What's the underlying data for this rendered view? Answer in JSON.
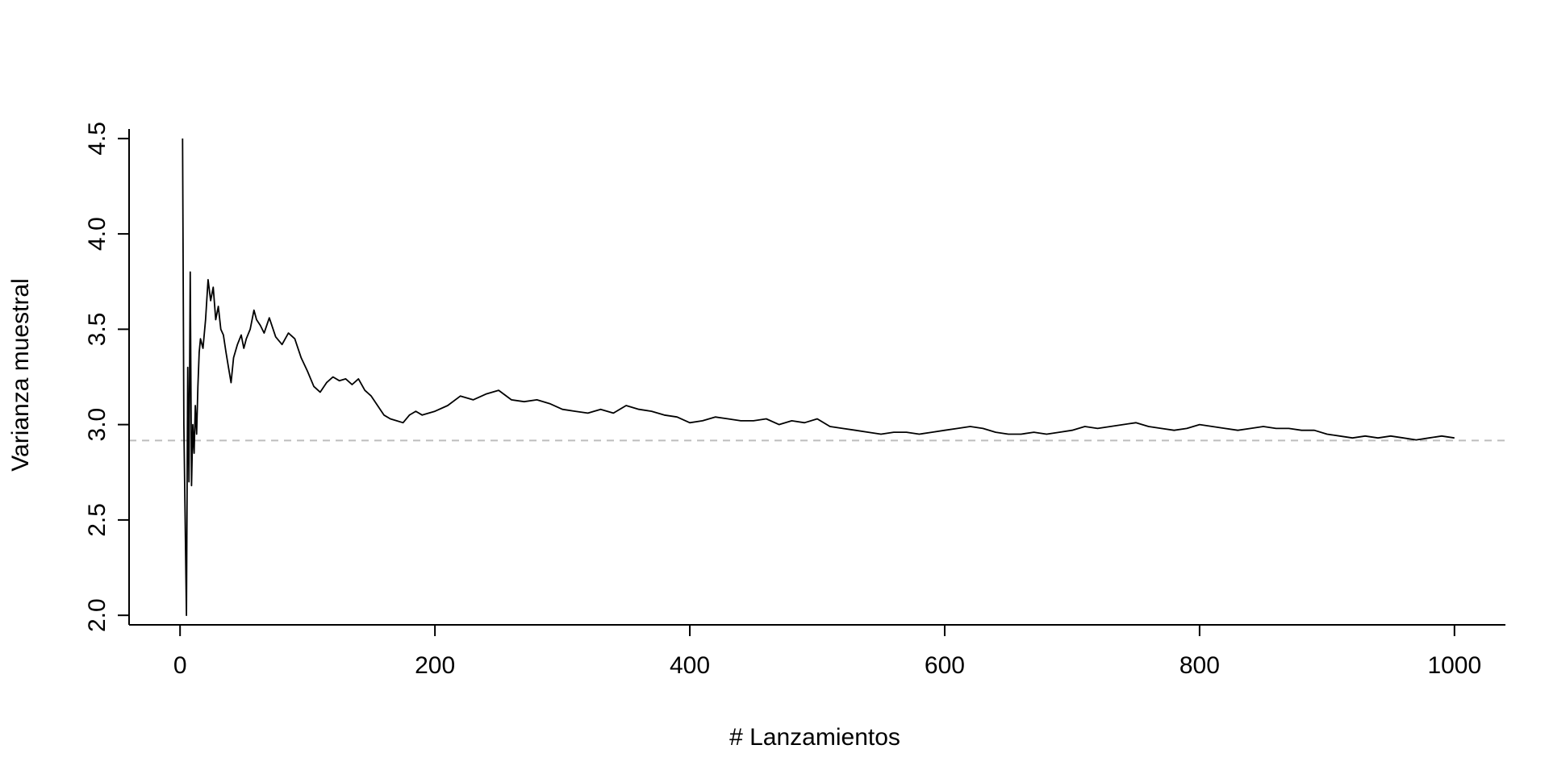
{
  "chart_data": {
    "type": "line",
    "title": "",
    "xlabel": "# Lanzamientos",
    "ylabel": "Varianza muestral",
    "xlim": [
      -40,
      1040
    ],
    "ylim": [
      1.95,
      4.55
    ],
    "xticks": [
      0,
      200,
      400,
      600,
      800,
      1000
    ],
    "xtick_labels": [
      "0",
      "200",
      "400",
      "600",
      "800",
      "1000"
    ],
    "yticks": [
      2.0,
      2.5,
      3.0,
      3.5,
      4.0,
      4.5
    ],
    "ytick_labels": [
      "2.0",
      "2.5",
      "3.0",
      "3.5",
      "4.0",
      "4.5"
    ],
    "grid": false,
    "reference_line": {
      "y": 2.9167,
      "style": "dashed",
      "color": "#bdbdbd"
    },
    "series": [
      {
        "color": "#000000",
        "x": [
          2,
          3,
          4,
          5,
          6,
          7,
          8,
          9,
          10,
          11,
          12,
          13,
          14,
          15,
          16,
          18,
          20,
          22,
          24,
          26,
          28,
          30,
          32,
          34,
          36,
          38,
          40,
          42,
          45,
          48,
          50,
          52,
          55,
          58,
          60,
          63,
          66,
          70,
          75,
          80,
          85,
          90,
          95,
          100,
          105,
          110,
          115,
          120,
          125,
          130,
          135,
          140,
          145,
          150,
          155,
          160,
          165,
          170,
          175,
          180,
          185,
          190,
          200,
          210,
          220,
          230,
          240,
          250,
          260,
          270,
          280,
          290,
          300,
          310,
          320,
          330,
          340,
          350,
          360,
          370,
          380,
          390,
          400,
          410,
          420,
          430,
          440,
          450,
          460,
          470,
          480,
          490,
          500,
          510,
          520,
          530,
          540,
          550,
          560,
          570,
          580,
          590,
          600,
          610,
          620,
          630,
          640,
          650,
          660,
          670,
          680,
          690,
          700,
          710,
          720,
          730,
          740,
          750,
          760,
          770,
          780,
          790,
          800,
          810,
          820,
          830,
          840,
          850,
          860,
          870,
          880,
          890,
          900,
          910,
          920,
          930,
          940,
          950,
          960,
          970,
          980,
          990,
          1000
        ],
        "values": [
          4.5,
          3.0,
          2.5,
          2.0,
          3.3,
          2.7,
          3.8,
          2.68,
          3.0,
          2.85,
          3.1,
          2.95,
          3.2,
          3.38,
          3.45,
          3.4,
          3.55,
          3.76,
          3.65,
          3.72,
          3.55,
          3.62,
          3.5,
          3.47,
          3.38,
          3.3,
          3.22,
          3.35,
          3.42,
          3.47,
          3.4,
          3.45,
          3.5,
          3.6,
          3.55,
          3.52,
          3.48,
          3.56,
          3.46,
          3.42,
          3.48,
          3.45,
          3.35,
          3.28,
          3.2,
          3.17,
          3.22,
          3.25,
          3.23,
          3.24,
          3.21,
          3.24,
          3.18,
          3.15,
          3.1,
          3.05,
          3.03,
          3.02,
          3.01,
          3.05,
          3.07,
          3.05,
          3.07,
          3.1,
          3.15,
          3.13,
          3.16,
          3.18,
          3.13,
          3.12,
          3.13,
          3.11,
          3.08,
          3.07,
          3.06,
          3.08,
          3.06,
          3.1,
          3.08,
          3.07,
          3.05,
          3.04,
          3.01,
          3.02,
          3.04,
          3.03,
          3.02,
          3.02,
          3.03,
          3.0,
          3.02,
          3.01,
          3.03,
          2.99,
          2.98,
          2.97,
          2.96,
          2.95,
          2.96,
          2.96,
          2.95,
          2.96,
          2.97,
          2.98,
          2.99,
          2.98,
          2.96,
          2.95,
          2.95,
          2.96,
          2.95,
          2.96,
          2.97,
          2.99,
          2.98,
          2.99,
          3.0,
          3.01,
          2.99,
          2.98,
          2.97,
          2.98,
          3.0,
          2.99,
          2.98,
          2.97,
          2.98,
          2.99,
          2.98,
          2.98,
          2.97,
          2.97,
          2.95,
          2.94,
          2.93,
          2.94,
          2.93,
          2.94,
          2.93,
          2.92,
          2.93,
          2.94,
          2.93
        ]
      }
    ]
  }
}
